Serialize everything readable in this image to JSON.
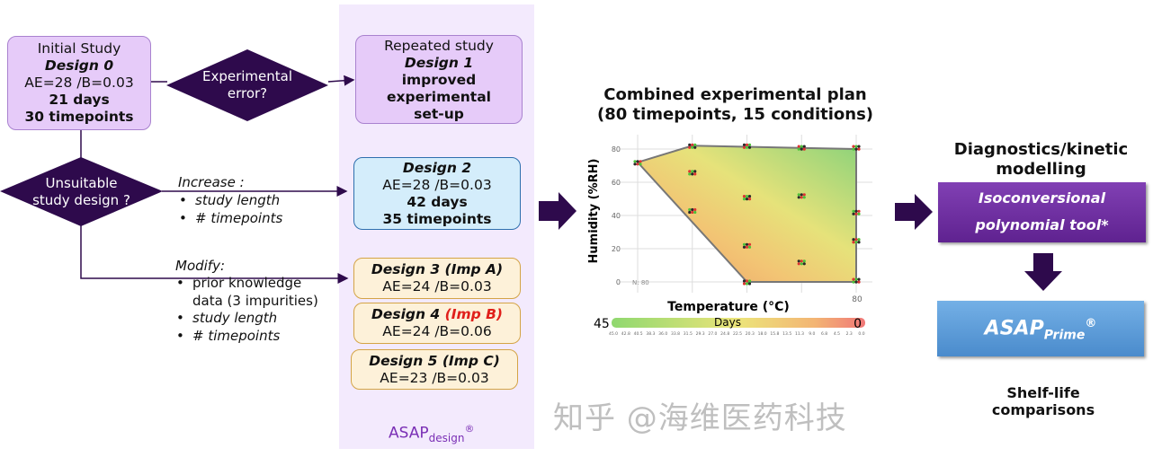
{
  "initial": {
    "l1": "Initial Study",
    "l2": "Design 0",
    "l3": "AE=28 /B=0.03",
    "l4": "21 days",
    "l5": "30 timepoints"
  },
  "diamond_error": {
    "l1": "Experimental",
    "l2": "error?"
  },
  "repeated": {
    "l1": "Repeated study",
    "l2": "Design 1",
    "l3": "improved",
    "l4": "experimental",
    "l5": "set-up"
  },
  "diamond_unsuitable": {
    "l1": "Unsuitable",
    "l2": "study design ?"
  },
  "increase": {
    "title": "Increase :",
    "items": [
      "study length",
      "# timepoints"
    ]
  },
  "design2": {
    "l1": "Design 2",
    "l2": "AE=28 /B=0.03",
    "l3": "42 days",
    "l4": "35 timepoints"
  },
  "modify": {
    "title": "Modify:",
    "items": [
      "prior knowledge",
      "data (3 impurities)",
      "study length",
      "# timepoints"
    ]
  },
  "design3": {
    "name": "Design 3 (Imp A)",
    "params": "AE=24 /B=0.03"
  },
  "design4": {
    "name": "Design 4",
    "imp": "(Imp B)",
    "params": "AE=24 /B=0.06"
  },
  "design5": {
    "name": "Design 5 (Imp C)",
    "params": "AE=23 /B=0.03"
  },
  "asap_design": {
    "main": "ASAP",
    "sub": "design",
    "reg": "®"
  },
  "plan": {
    "l1": "Combined experimental plan",
    "l2": "(80 timepoints, 15 conditions)"
  },
  "diagnostics": {
    "l1": "Diagnostics/kinetic",
    "l2": "modelling"
  },
  "iso": {
    "l1": "Isoconversional",
    "l2": "polynomial tool*"
  },
  "asap_prime": {
    "main": "ASAP",
    "sub": "Prime",
    "reg": "®"
  },
  "shelf": {
    "l1": "Shelf-life",
    "l2": "comparisons"
  },
  "watermark": "知乎 @海维医药科技",
  "colors": {
    "dark": "#2e0a4c",
    "purple_box": "#6f2b9e",
    "blue_box": "#5a9ad8",
    "red": "#e0201b"
  },
  "chart_data": {
    "type": "scatter",
    "xlabel": "Temperature (°C)",
    "ylabel": "Humidity (%RH)",
    "xtick_labels": [
      "80"
    ],
    "yticks": [
      0,
      20,
      40,
      60,
      80
    ],
    "ylim": [
      0,
      85
    ],
    "n_label": "N: 80",
    "x": [
      40,
      50,
      50,
      50,
      60,
      60,
      60,
      60,
      70,
      70,
      70,
      80,
      80,
      80,
      80
    ],
    "y": [
      72,
      82,
      66,
      43,
      82,
      51,
      22,
      0,
      81,
      52,
      12,
      81,
      42,
      25,
      1
    ],
    "colorbar": {
      "title": "Days",
      "min_label": "45",
      "max_label": "0",
      "ticks": [
        "45.0",
        "42.8",
        "40.5",
        "38.3",
        "36.0",
        "33.8",
        "31.5",
        "29.3",
        "27.0",
        "24.8",
        "22.5",
        "20.3",
        "18.0",
        "15.8",
        "13.5",
        "11.3",
        "9.0",
        "6.8",
        "4.5",
        "2.3",
        "0.0"
      ]
    }
  }
}
